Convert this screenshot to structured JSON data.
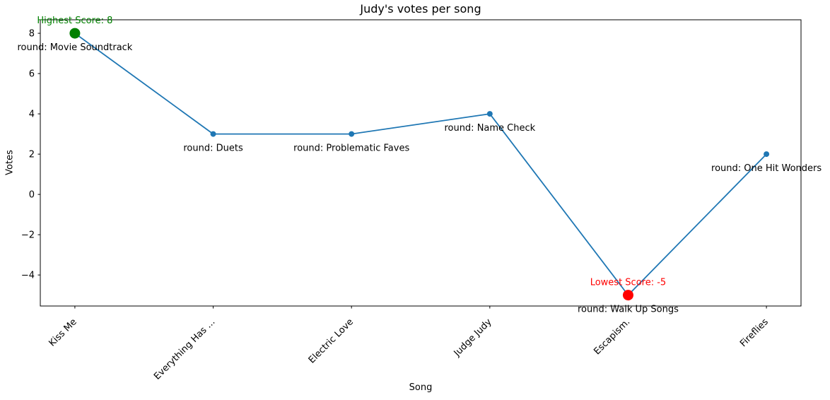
{
  "figure": {
    "title": "Judy's votes per song",
    "xlabel": "Song",
    "ylabel": "Votes"
  },
  "chart_data": {
    "type": "line",
    "title": "Judy's votes per song",
    "xlabel": "Song",
    "ylabel": "Votes",
    "categories": [
      "Kiss Me",
      "Everything Has ...",
      "Electric Love",
      "Judge Judy",
      "Escapism.",
      "Fireflies"
    ],
    "values": [
      8,
      3,
      3,
      4,
      -5,
      2
    ],
    "point_annotations": [
      "round: Movie Soundtrack",
      "round: Duets",
      "round: Problematic Faves",
      "round: Name Check",
      "round: Walk Up Songs",
      "round: One Hit Wonders"
    ],
    "highlights": [
      {
        "index": 0,
        "label": "Highest Score: 8",
        "color": "#008000"
      },
      {
        "index": 4,
        "label": "Lowest Score: -5",
        "color": "#ff0000"
      }
    ],
    "y_ticks": [
      8,
      6,
      4,
      2,
      0,
      -2,
      -4
    ],
    "ylim": [
      -5.54,
      8.67
    ],
    "x_margin_categories": 0.25,
    "line_color": "#1f77b4",
    "marker_color": "#1f77b4",
    "annotation_color": "#000000",
    "axis_color": "#000000",
    "grid": false,
    "legend": "none"
  }
}
